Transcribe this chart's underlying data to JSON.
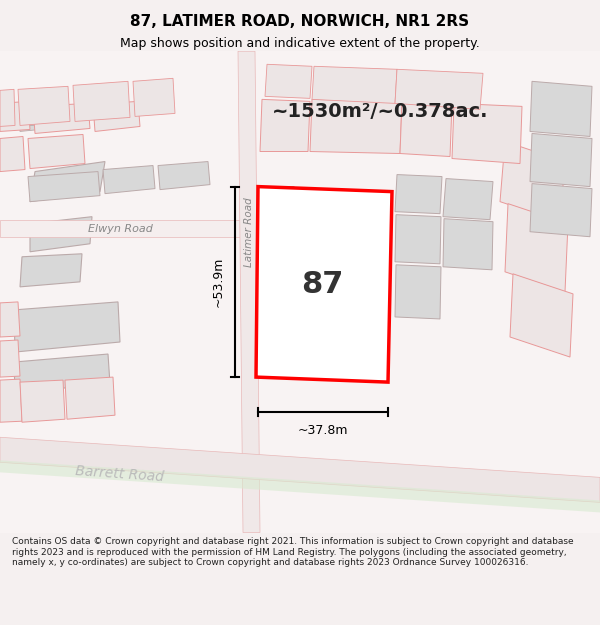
{
  "title": "87, LATIMER ROAD, NORWICH, NR1 2RS",
  "subtitle": "Map shows position and indicative extent of the property.",
  "area_label": "~1530m²/~0.378ac.",
  "property_number": "87",
  "dim_width": "~37.8m",
  "dim_height": "~53.9m",
  "road_labels": [
    "Elwyn Road",
    "Latimer Road",
    "Barrett Road"
  ],
  "footer_text": "Contains OS data © Crown copyright and database right 2021. This information is subject to Crown copyright and database rights 2023 and is reproduced with the permission of HM Land Registry. The polygons (including the associated geometry, namely x, y co-ordinates) are subject to Crown copyright and database rights 2023 Ordnance Survey 100026316.",
  "bg_color": "#f5f0f0",
  "map_bg": "#ffffff",
  "property_fill": "#ffffff",
  "property_edge": "#ff0000",
  "building_fill": "#d8d8d8",
  "building_edge": "#c0b0b0",
  "road_color": "#f0e8e8",
  "road_line_color": "#e8b8b8",
  "footer_bg": "#ffffff",
  "title_color": "#000000",
  "text_color": "#333333",
  "dim_color": "#000000"
}
